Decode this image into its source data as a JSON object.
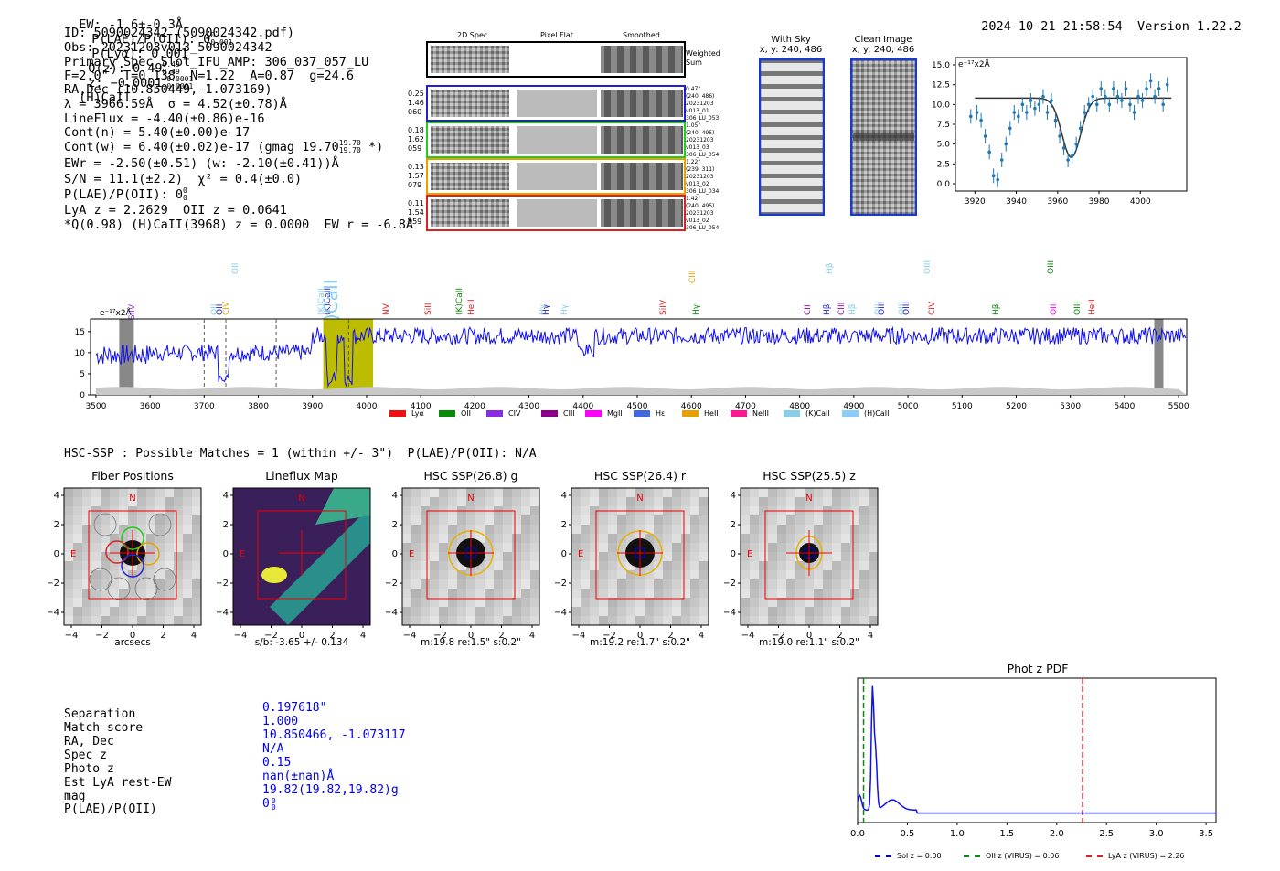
{
  "header": {
    "ew": "EW: -1.6±-0.3Å",
    "plae": "P(LAE)/P(OII): 0",
    "plae_sup": "0",
    "plae_sub": "0.001",
    "plya": "P(Lyα): 0.001",
    "qz": "Q(z): 0.49",
    "qz_sup": "0.49",
    "qz_sub": "0.49",
    "z": "z: −0.0001",
    "z_sup": "−0.0001",
    "z_sub": "−0.0001",
    "z_line": "(H)CaII",
    "timestamp": "2024-10-21 21:58:54",
    "version": "Version 1.22.2"
  },
  "info": {
    "id": "ID: 5090024342 (5090024342.pdf)",
    "obs": "Obs: 20231203v013_5090024342",
    "primary": "Primary Spec_Slot_IFU_AMP: 306_037_057_LU",
    "fwhm": "F=2.0\"  T=0.138  N=1.22  A=0.87  g=24.6",
    "radec": "RA,Dec (10.850449,-1.073169)",
    "lambda": "λ = 3966.59Å  σ = 4.52(±0.78)Å",
    "lineflux": "LineFlux = -4.40(±0.86)e-16",
    "contn": "Cont(n) = 5.40(±0.00)e-17",
    "contw": "Cont(w) = 6.40(±0.02)e-17 (gmag 19.70",
    "contw_sup": "19.70",
    "contw_sub": "19.70",
    "contw_end": " *)",
    "ewr": "EWr = -2.50(±0.51) (w: -2.10(±0.41))Å",
    "sn": "S/N = 11.1(±2.2)  χ² = 0.4(±0.0)",
    "plae2": "P(LAE)/P(OII): 0",
    "plae2_sup": "0",
    "plae2_sub": "0",
    "lya": "LyA z = 2.2629  OII z = 0.0641",
    "q": "*Q(0.98) (H)CaII(3968) z = 0.0000  EW r = -6.8Å"
  },
  "cutouts": {
    "col_2d": "2D Spec",
    "col_flat": "Pixel Flat",
    "col_smooth": "Smoothed",
    "weighted": "Weighted Sum",
    "rows": [
      {
        "left": [
          "0.25",
          "1.46",
          "060"
        ],
        "right": [
          "0.47\"",
          "(240, 486)",
          "20231203",
          "v013_01",
          "306_LU_053"
        ],
        "color": "#2020d0"
      },
      {
        "left": [
          "0.18",
          "1.62",
          "059"
        ],
        "right": [
          "1.05\"",
          "(240, 495)",
          "20231203",
          "v013_03",
          "306_LU_054"
        ],
        "color": "#22cc22"
      },
      {
        "left": [
          "0.13",
          "1.57",
          "079"
        ],
        "right": [
          "1.22\"",
          "(239, 311)",
          "20231203",
          "v013_02",
          "306_LU_034"
        ],
        "color": "#e8a000"
      },
      {
        "left": [
          "0.11",
          "1.54",
          "059"
        ],
        "right": [
          "1.42\"",
          "(240, 495)",
          "20231203",
          "v013_02",
          "306_LU_054"
        ],
        "color": "#dd2020"
      }
    ]
  },
  "sky": {
    "title": "With Sky",
    "coords": "x, y: 240, 486"
  },
  "clean": {
    "title": "Clean Image",
    "coords": "x, y: 240, 486"
  },
  "fitplot": {
    "unit": "e⁻¹⁷x2Å",
    "yticks": [
      "15.0",
      "12.5",
      "10.0",
      "7.5",
      "5.0",
      "2.5",
      "0.0"
    ],
    "xticks": [
      "3920",
      "3940",
      "3960",
      "3980",
      "4000"
    ]
  },
  "spectrum": {
    "unit": "e⁻¹⁷x2Å",
    "yticks": [
      "15",
      "10",
      "5",
      "0"
    ],
    "xticks": [
      "3500",
      "3600",
      "3700",
      "3800",
      "3900",
      "4000",
      "4100",
      "4200",
      "4300",
      "4400",
      "4500",
      "4600",
      "4700",
      "4800",
      "4900",
      "5000",
      "5100",
      "5200",
      "5300",
      "5400",
      "5500"
    ],
    "big_label": "(H)CaII",
    "line_labels": [
      {
        "t": "SiIV",
        "c": "#8a2be2"
      },
      {
        "t": "OII",
        "c": "#87ceeb"
      },
      {
        "t": "OII",
        "c": "#2020cc"
      },
      {
        "t": "CIV",
        "c": "#e8a000"
      },
      {
        "t": "OII",
        "c": "#87ceeb"
      },
      {
        "t": "(K)CaII",
        "c": "#87ceeb"
      },
      {
        "t": "(K)CaII",
        "c": "#2020cc"
      },
      {
        "t": "NV",
        "c": "#dd2020"
      },
      {
        "t": "SiII",
        "c": "#dd2020"
      },
      {
        "t": "(K)CaII",
        "c": "#0a8a0a"
      },
      {
        "t": "HeII",
        "c": "#dd2020"
      },
      {
        "t": "Hγ",
        "c": "#87ceeb"
      },
      {
        "t": "Hγ",
        "c": "#2020cc"
      },
      {
        "t": "Hγ",
        "c": "#87ceeb"
      },
      {
        "t": "SiIV",
        "c": "#dd2020"
      },
      {
        "t": "CIII",
        "c": "#e8a000"
      },
      {
        "t": "Hγ",
        "c": "#0a8a0a"
      },
      {
        "t": "CII",
        "c": "#8b008b"
      },
      {
        "t": "Hβ",
        "c": "#2020cc"
      },
      {
        "t": "Hβ",
        "c": "#87ceeb"
      },
      {
        "t": "CIII",
        "c": "#8b008b"
      },
      {
        "t": "Hβ",
        "c": "#87ceeb"
      },
      {
        "t": "OIII",
        "c": "#87ceeb"
      },
      {
        "t": "OIII",
        "c": "#2020cc"
      },
      {
        "t": "OIII",
        "c": "#87ceeb"
      },
      {
        "t": "OIII",
        "c": "#2020cc"
      },
      {
        "t": "OIII",
        "c": "#87ceeb"
      },
      {
        "t": "CIV",
        "c": "#dd2020"
      },
      {
        "t": "Hβ",
        "c": "#0a8a0a"
      },
      {
        "t": "OII",
        "c": "#ff00ff"
      },
      {
        "t": "OIII",
        "c": "#0a8a0a"
      },
      {
        "t": "OIII",
        "c": "#0a8a0a"
      },
      {
        "t": "HeII",
        "c": "#dd2020"
      }
    ],
    "legend": [
      {
        "t": "Lyα",
        "c": "#ee1111"
      },
      {
        "t": "OII",
        "c": "#0a8a0a"
      },
      {
        "t": "CIV",
        "c": "#8a2be2"
      },
      {
        "t": "CIII",
        "c": "#8b008b"
      },
      {
        "t": "MgII",
        "c": "#ff00ff"
      },
      {
        "t": "Hε",
        "c": "#4169e1"
      },
      {
        "t": "HeII",
        "c": "#e8a000"
      },
      {
        "t": "NeIII",
        "c": "#ff1493"
      },
      {
        "t": "(K)CaII",
        "c": "#87ceeb"
      },
      {
        "t": "(H)CaII",
        "c": "#87cefa"
      }
    ]
  },
  "hsc": {
    "line": "HSC-SSP : Possible Matches = 1 (within +/- 3\")  P(LAE)/P(OII): N/A",
    "panels": [
      {
        "title": "Fiber Positions",
        "xlabel": "arcsecs"
      },
      {
        "title": "Lineflux Map",
        "xlabel": "s/b: -3.65 +/- 0.134"
      },
      {
        "title": "HSC SSP(26.8) g",
        "xlabel": "m:19.8  re:1.5\"  s:0.2\""
      },
      {
        "title": "HSC SSP(26.4) r",
        "xlabel": "m:19.2  re:1.7\"  s:0.2\""
      },
      {
        "title": "HSC SSP(25.5) z",
        "xlabel": "m:19.0  re:1.1\"  s:0.2\""
      }
    ],
    "yticks": [
      "4",
      "2",
      "0",
      "−2",
      "−4"
    ],
    "xticks": [
      "−4",
      "−2",
      "0",
      "2",
      "4"
    ],
    "north": "N",
    "east": "E"
  },
  "match": {
    "labels": [
      "Separation",
      "Match score",
      "RA, Dec",
      "Spec z",
      "Photo z",
      "Est LyA rest-EW",
      "mag",
      "P(LAE)/P(OII)"
    ],
    "values": [
      "0.197618\"",
      "1.000",
      "10.850466, -1.073117",
      "N/A",
      "0.15",
      "nan(±nan)Å",
      "19.82(19.82,19.82)g",
      "0"
    ],
    "plae_sup": "0",
    "plae_sub": "0"
  },
  "photz": {
    "title": "Phot z PDF",
    "xticks": [
      "0.0",
      "0.5",
      "1.0",
      "1.5",
      "2.0",
      "2.5",
      "3.0",
      "3.5"
    ],
    "legend": [
      {
        "t": "Sol z = 0.00",
        "c": "#0000cc"
      },
      {
        "t": "OII z (VIRUS) = 0.06",
        "c": "#0a8a0a"
      },
      {
        "t": "LyA z (VIRUS) = 2.26",
        "c": "#dd2020"
      }
    ]
  }
}
